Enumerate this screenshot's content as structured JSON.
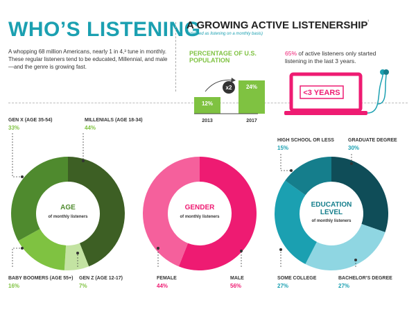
{
  "header": {
    "title": "WHO’S LISTENING",
    "intro": "A whopping 68 million Americans, nearly 1 in 4,³ tune in monthly. These regular listeners tend to be educated, Millennial, and male—and the genre is growing fast."
  },
  "growth": {
    "title": "A GROWING ACTIVE LISTENERSHIP",
    "title_sup": "³",
    "subtitle": "(defined as listening on a monthly basis)",
    "stat_highlight": "65%",
    "stat_text": " of active listeners only started listening in the last 3 years.",
    "laptop_label": "<3 YEARS",
    "colors": {
      "green": "#7fc241",
      "pink": "#ee1b72"
    },
    "icons": [
      "laptop-icon",
      "earbuds-icon"
    ]
  },
  "chart_data": [
    {
      "type": "bar",
      "title": "PERCENTAGE OF U.S. POPULATION",
      "categories": [
        "2013",
        "2017"
      ],
      "values": [
        12,
        24
      ],
      "value_labels": [
        "12%",
        "24%"
      ],
      "annotation": "x2",
      "color": "#7fc241"
    },
    {
      "type": "pie",
      "center_title": "AGE",
      "center_subtitle": "of monthly listeners",
      "slices": [
        {
          "name": "MILLENIALS (AGE 18-34)",
          "value": 44,
          "label": "44%",
          "color": "#3d5f24"
        },
        {
          "name": "GEN Z (AGE 12-17)",
          "value": 7,
          "label": "7%",
          "color": "#c3e3a2"
        },
        {
          "name": "BABY BOOMERS (AGE 55+)",
          "value": 16,
          "label": "16%",
          "color": "#7fc241"
        },
        {
          "name": "GEN X (AGE 35-54)",
          "value": 33,
          "label": "33%",
          "color": "#4f8a2e"
        }
      ]
    },
    {
      "type": "pie",
      "center_title": "GENDER",
      "center_subtitle": "of monthly listeners",
      "slices": [
        {
          "name": "MALE",
          "value": 56,
          "label": "56%",
          "color": "#ee1b72"
        },
        {
          "name": "FEMALE",
          "value": 44,
          "label": "44%",
          "color": "#f5609c"
        }
      ]
    },
    {
      "type": "pie",
      "center_title": "EDUCATION LEVEL",
      "center_title_lines": [
        "EDUCATION",
        "LEVEL"
      ],
      "center_subtitle": "of monthly listeners",
      "slices": [
        {
          "name": "GRADUATE DEGREE",
          "value": 30,
          "label": "30%",
          "color": "#0f4d58"
        },
        {
          "name": "BACHELOR’S DEGREE",
          "value": 27,
          "label": "27%",
          "color": "#8fd6e2"
        },
        {
          "name": "SOME COLLEGE",
          "value": 27,
          "label": "27%",
          "color": "#1ba0b1"
        },
        {
          "name": "HIGH SCHOOL OR LESS",
          "value": 15,
          "label": "15%",
          "color": "#157e8c"
        }
      ]
    }
  ]
}
